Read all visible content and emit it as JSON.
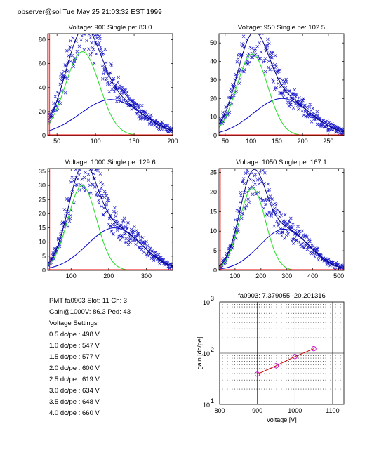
{
  "header": "observer@sol  Tue May 25 21:03:32 EST 1999",
  "info": {
    "pmt_line": "PMT fa0903 Slot: 11 Ch: 3",
    "gain_line": "Gain@1000V: 86.3 Ped: 43",
    "settings_title": "Voltage Settings",
    "settings": [
      "0.5 dc/pe : 498 V",
      "1.0 dc/pe : 547 V",
      "1.5 dc/pe : 577 V",
      "2.0 dc/pe : 600 V",
      "2.5 dc/pe : 619 V",
      "3.0 dc/pe : 634 V",
      "3.5 dc/pe : 648 V",
      "4.0 dc/pe : 660 V"
    ]
  },
  "colors": {
    "data": "#1a1acc",
    "fit_total": "#000080",
    "fit_single": "#22dd22",
    "fit_double": "#0000cc",
    "pedestal": "#ee0000",
    "gain_line": "#cc0000",
    "gain_marker": "#cc00cc"
  },
  "chart_data": [
    {
      "type": "scatter",
      "title": "Voltage: 900 Single pe: 83.0",
      "xlim": [
        38,
        200
      ],
      "ylim": [
        0,
        85
      ],
      "xticks": [
        50,
        100,
        150,
        200
      ],
      "yticks": [
        0,
        20,
        40,
        60,
        80
      ],
      "pedestal_x": [
        40,
        42
      ],
      "single_pe": {
        "peak_x": 83.0,
        "amp": 70,
        "sigma": 22
      },
      "double_pe": {
        "peak_x": 120,
        "amp": 30,
        "sigma": 40
      },
      "seed": 11
    },
    {
      "type": "scatter",
      "title": "Voltage: 950 Single pe: 102.5",
      "xlim": [
        38,
        280
      ],
      "ylim": [
        0,
        55
      ],
      "xticks": [
        50,
        100,
        150,
        200,
        250
      ],
      "yticks": [
        0,
        10,
        20,
        30,
        40,
        50
      ],
      "pedestal_x": [
        40
      ],
      "single_pe": {
        "peak_x": 102.5,
        "amp": 44,
        "sigma": 30
      },
      "double_pe": {
        "peak_x": 160,
        "amp": 20,
        "sigma": 55
      },
      "seed": 23
    },
    {
      "type": "scatter",
      "title": "Voltage: 1000 Single pe: 129.6",
      "xlim": [
        38,
        370
      ],
      "ylim": [
        0,
        36
      ],
      "xticks": [
        100,
        200,
        300
      ],
      "yticks": [
        0,
        5,
        10,
        15,
        20,
        25,
        30,
        35
      ],
      "pedestal_x": [
        43
      ],
      "single_pe": {
        "peak_x": 129.6,
        "amp": 30,
        "sigma": 38
      },
      "double_pe": {
        "peak_x": 215,
        "amp": 15,
        "sigma": 72
      },
      "seed": 37
    },
    {
      "type": "scatter",
      "title": "Voltage: 1050 Single pe: 167.1",
      "xlim": [
        38,
        520
      ],
      "ylim": [
        0,
        26
      ],
      "xticks": [
        100,
        200,
        300,
        400,
        500
      ],
      "yticks": [
        0,
        5,
        10,
        15,
        20,
        25
      ],
      "pedestal_x": [
        43
      ],
      "single_pe": {
        "peak_x": 167.1,
        "amp": 21,
        "sigma": 50
      },
      "double_pe": {
        "peak_x": 290,
        "amp": 10.5,
        "sigma": 95
      },
      "seed": 53
    },
    {
      "type": "line",
      "title": "fa0903: 7.379055,-20.201316",
      "xlabel": "voltage [V]",
      "ylabel": "gain [dc/pe]",
      "xlim": [
        800,
        1130
      ],
      "xticks": [
        800,
        900,
        1000,
        1100
      ],
      "yscale": "log",
      "ylim": [
        10,
        1000
      ],
      "ytick_labels": [
        {
          "base": "10",
          "exp": "1",
          "value": 10
        },
        {
          "base": "10",
          "exp": "2",
          "value": 100
        },
        {
          "base": "10",
          "exp": "3",
          "value": 1000
        }
      ],
      "grid": true,
      "x": [
        900,
        950,
        1000,
        1050
      ],
      "y": [
        39,
        57,
        86,
        122
      ]
    }
  ]
}
